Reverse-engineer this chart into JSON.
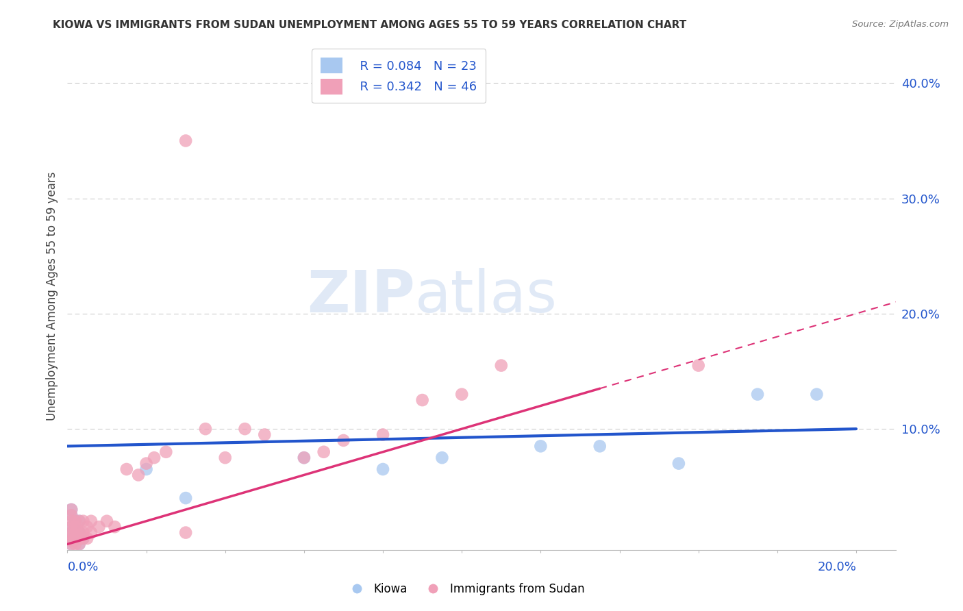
{
  "title": "KIOWA VS IMMIGRANTS FROM SUDAN UNEMPLOYMENT AMONG AGES 55 TO 59 YEARS CORRELATION CHART",
  "source": "Source: ZipAtlas.com",
  "ylabel": "Unemployment Among Ages 55 to 59 years",
  "xlim": [
    0.0,
    0.21
  ],
  "ylim": [
    -0.005,
    0.435
  ],
  "kiowa_color": "#a8c8f0",
  "sudan_color": "#f0a0b8",
  "kiowa_line_color": "#2255cc",
  "sudan_line_color": "#dd3377",
  "legend_r1": "R = 0.084",
  "legend_n1": "N = 23",
  "legend_r2": "R = 0.342",
  "legend_n2": "N = 46",
  "watermark_zip": "ZIP",
  "watermark_atlas": "atlas",
  "background_color": "#ffffff",
  "grid_color": "#cccccc",
  "kiowa_x": [
    0.001,
    0.001,
    0.001,
    0.001,
    0.001,
    0.002,
    0.002,
    0.002,
    0.003,
    0.003,
    0.003,
    0.004,
    0.001,
    0.02,
    0.03,
    0.06,
    0.08,
    0.095,
    0.12,
    0.135,
    0.155,
    0.175,
    0.19
  ],
  "kiowa_y": [
    0.0,
    0.005,
    0.01,
    0.015,
    0.025,
    0.005,
    0.01,
    0.02,
    0.0,
    0.01,
    0.02,
    0.005,
    0.03,
    0.065,
    0.04,
    0.075,
    0.065,
    0.075,
    0.085,
    0.085,
    0.07,
    0.13,
    0.13
  ],
  "sudan_x": [
    0.001,
    0.001,
    0.001,
    0.001,
    0.001,
    0.001,
    0.001,
    0.001,
    0.002,
    0.002,
    0.002,
    0.002,
    0.002,
    0.003,
    0.003,
    0.003,
    0.003,
    0.004,
    0.004,
    0.004,
    0.005,
    0.005,
    0.006,
    0.006,
    0.008,
    0.01,
    0.012,
    0.015,
    0.018,
    0.02,
    0.022,
    0.025,
    0.03,
    0.03,
    0.035,
    0.04,
    0.045,
    0.05,
    0.06,
    0.065,
    0.07,
    0.08,
    0.09,
    0.1,
    0.11,
    0.16
  ],
  "sudan_y": [
    0.0,
    0.003,
    0.006,
    0.01,
    0.015,
    0.02,
    0.025,
    0.03,
    0.0,
    0.005,
    0.01,
    0.015,
    0.02,
    0.0,
    0.005,
    0.01,
    0.02,
    0.005,
    0.01,
    0.02,
    0.005,
    0.015,
    0.01,
    0.02,
    0.015,
    0.02,
    0.015,
    0.065,
    0.06,
    0.07,
    0.075,
    0.08,
    0.01,
    0.35,
    0.1,
    0.075,
    0.1,
    0.095,
    0.075,
    0.08,
    0.09,
    0.095,
    0.125,
    0.13,
    0.155,
    0.155
  ],
  "kiowa_line_x0": 0.0,
  "kiowa_line_y0": 0.085,
  "kiowa_line_x1": 0.2,
  "kiowa_line_y1": 0.1,
  "sudan_line_x0": 0.0,
  "sudan_line_y0": 0.0,
  "sudan_line_x1": 0.2,
  "sudan_line_y1": 0.2
}
